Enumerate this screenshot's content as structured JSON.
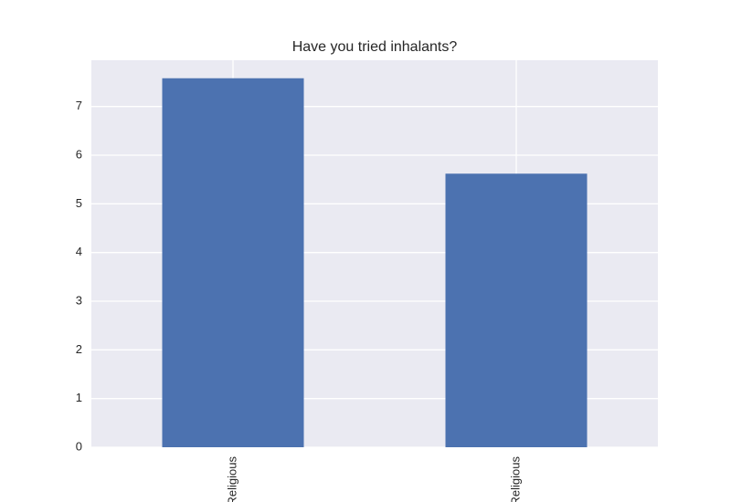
{
  "chart_data": {
    "type": "bar",
    "title": "Have you tried inhalants?",
    "categories": [
      "Not Religious",
      "Religious"
    ],
    "values": [
      7.58,
      5.62
    ],
    "color": "#4c72b0",
    "ylim": [
      0,
      7.95
    ],
    "yticks": [
      0,
      1,
      2,
      3,
      4,
      5,
      6,
      7
    ],
    "grid": true
  }
}
